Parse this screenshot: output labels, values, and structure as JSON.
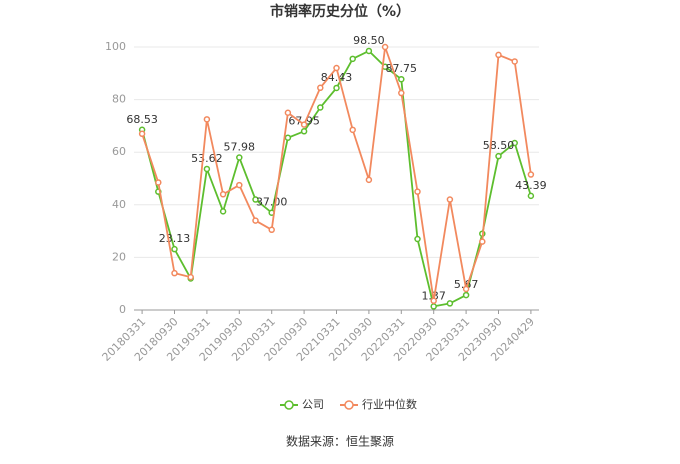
{
  "chart_data": {
    "type": "line",
    "title": "市销率历史分位（%）",
    "categories": [
      "20180331",
      null,
      "20180930",
      null,
      "20190331",
      null,
      "20190930",
      null,
      "20200331",
      null,
      "20200930",
      null,
      "20210331",
      null,
      "20210930",
      null,
      "20220331",
      null,
      "20220930",
      null,
      "20230331",
      null,
      "20230930",
      null,
      "20240429"
    ],
    "series": [
      {
        "name": "公司",
        "color": "#5dbe2e",
        "values": [
          68.53,
          45,
          23.13,
          12,
          53.62,
          37.5,
          57.98,
          42,
          37,
          65.5,
          67.95,
          77,
          84.43,
          95.5,
          98.5,
          92.5,
          87.75,
          27,
          1.37,
          2.5,
          5.67,
          29,
          58.5,
          63.5,
          43.39
        ],
        "value_labels": [
          "68.53",
          null,
          "23.13",
          null,
          "53.62",
          null,
          "57.98",
          null,
          "37.00",
          null,
          "67.95",
          null,
          "84.43",
          null,
          "98.50",
          null,
          "87.75",
          null,
          "1.37",
          null,
          "5.67",
          null,
          "58.50",
          null,
          "43.39"
        ]
      },
      {
        "name": "行业中位数",
        "color": "#f2895e",
        "values": [
          67,
          48.5,
          14,
          12.5,
          72.5,
          44,
          47.5,
          34,
          30.5,
          75,
          70.5,
          84.5,
          92,
          68.5,
          49.5,
          100,
          82.5,
          45,
          3.5,
          42,
          8,
          26,
          97,
          94.5,
          51.5
        ]
      }
    ],
    "ylim": [
      0,
      100
    ],
    "yticks": [
      0,
      20,
      40,
      60,
      80,
      100
    ],
    "grid": true,
    "legend": "bottom",
    "source": "数据来源：恒生聚源"
  }
}
